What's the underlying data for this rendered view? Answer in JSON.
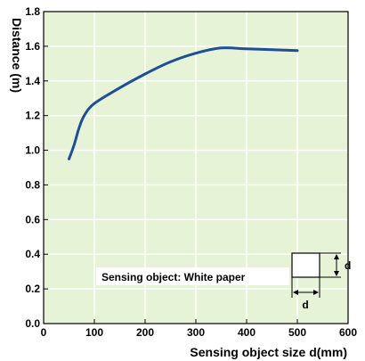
{
  "chart_data": {
    "type": "line",
    "xlabel": "Sensing object size d(mm)",
    "ylabel": "Distance (m)",
    "xlim": [
      0,
      600
    ],
    "ylim": [
      0,
      1.8
    ],
    "xticks": [
      "0",
      "100",
      "200",
      "300",
      "400",
      "500",
      "600"
    ],
    "yticks": [
      "0.0",
      "0.2",
      "0.4",
      "0.6",
      "0.8",
      "1.0",
      "1.2",
      "1.4",
      "1.6",
      "1.8"
    ],
    "grid": true,
    "series": [
      {
        "color": "#1f4e9a",
        "x": [
          50,
          60,
          70,
          80,
          100,
          150,
          200,
          250,
          300,
          350,
          400,
          450,
          500
        ],
        "y": [
          0.95,
          1.03,
          1.13,
          1.2,
          1.27,
          1.36,
          1.44,
          1.51,
          1.56,
          1.59,
          1.585,
          1.58,
          1.575
        ]
      }
    ],
    "annotation": {
      "text": "Sensing object: White paper",
      "dimension_label_h": "d",
      "dimension_label_v": "d"
    },
    "colors": {
      "plot_bg": "#e6f3d6",
      "grid": "#ffffff",
      "line": "#1f4e9a"
    }
  }
}
